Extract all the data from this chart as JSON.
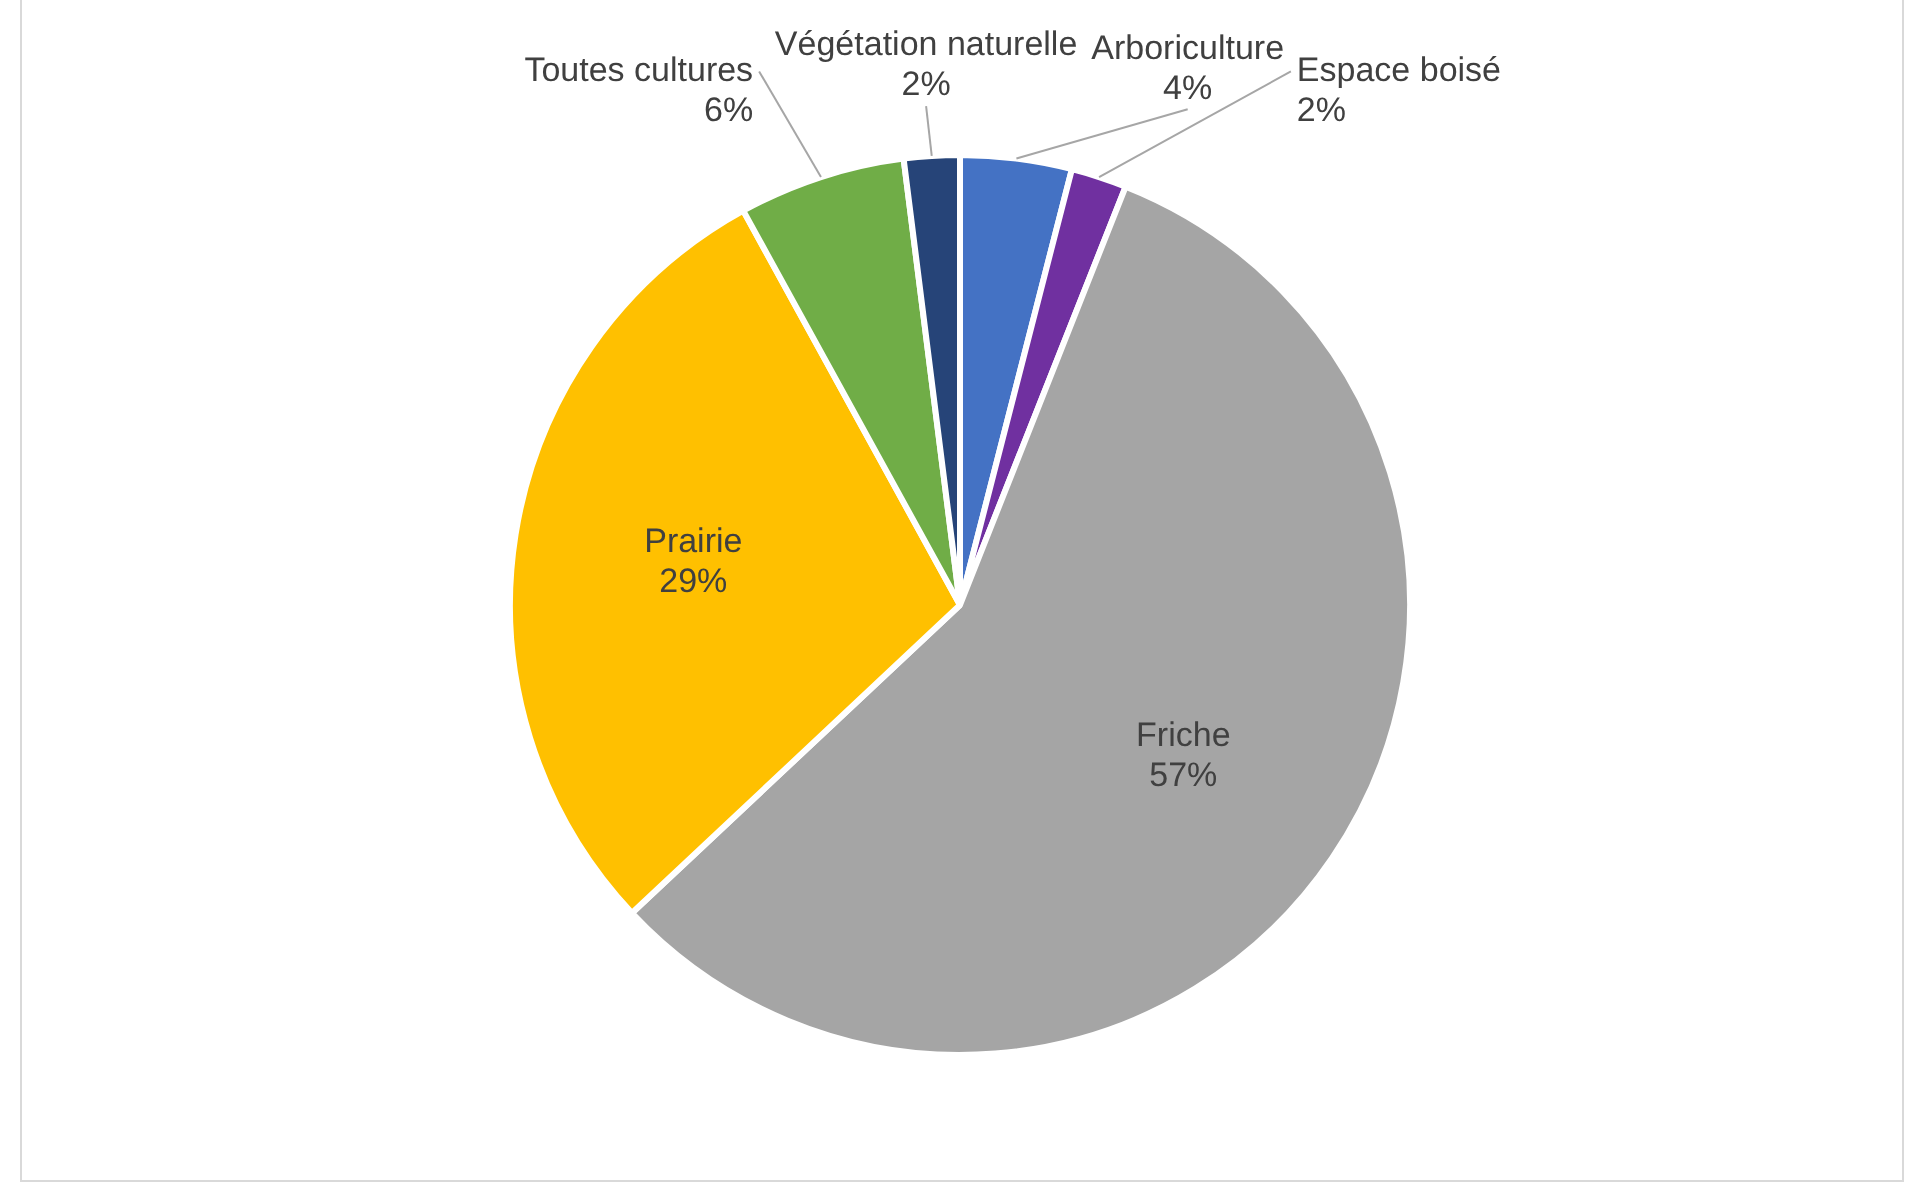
{
  "chart_data": {
    "type": "pie",
    "categories": [
      "Arboriculture",
      "Espace boisé",
      "Friche",
      "Prairie",
      "Toutes cultures",
      "Végétation naturelle"
    ],
    "values": [
      4,
      2,
      57,
      29,
      6,
      2
    ],
    "value_labels": [
      "4%",
      "2%",
      "57%",
      "29%",
      "6%",
      "2%"
    ],
    "colors": [
      "#4472c4",
      "#7030a0",
      "#a5a5a5",
      "#ffc000",
      "#70ad47",
      "#264478"
    ],
    "legend": false
  }
}
